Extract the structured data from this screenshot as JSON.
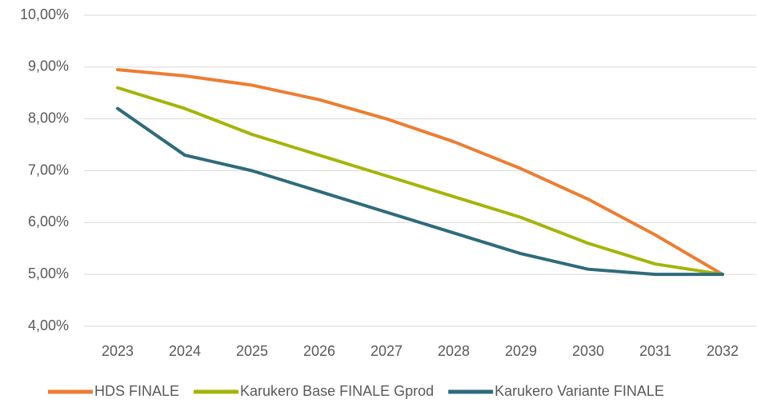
{
  "chart_data": {
    "type": "line",
    "categories": [
      "2023",
      "2024",
      "2025",
      "2026",
      "2027",
      "2028",
      "2029",
      "2030",
      "2031",
      "2032"
    ],
    "series": [
      {
        "name": "HDS FINALE",
        "color": "#ed7d31",
        "values": [
          8.95,
          8.83,
          8.65,
          8.37,
          8.0,
          7.56,
          7.04,
          6.45,
          5.76,
          5.0
        ]
      },
      {
        "name": "Karukero Base FINALE Gprod",
        "color": "#a5b40a",
        "values": [
          8.6,
          8.2,
          7.7,
          7.3,
          6.9,
          6.5,
          6.1,
          5.6,
          5.2,
          5.0
        ]
      },
      {
        "name": "Karukero Variante FINALE",
        "color": "#2e6b7c",
        "values": [
          8.2,
          7.3,
          7.0,
          6.6,
          6.2,
          5.8,
          5.4,
          5.1,
          5.0,
          5.0
        ]
      }
    ],
    "ylim": [
      4,
      10
    ],
    "yticks": [
      {
        "value": 4,
        "label": "4,00%"
      },
      {
        "value": 5,
        "label": "5,00%"
      },
      {
        "value": 6,
        "label": "6,00%"
      },
      {
        "value": 7,
        "label": "7,00%"
      },
      {
        "value": 8,
        "label": "8,00%"
      },
      {
        "value": 9,
        "label": "9,00%"
      },
      {
        "value": 10,
        "label": "10,00%"
      }
    ],
    "grid": true,
    "legend": "bottom"
  }
}
